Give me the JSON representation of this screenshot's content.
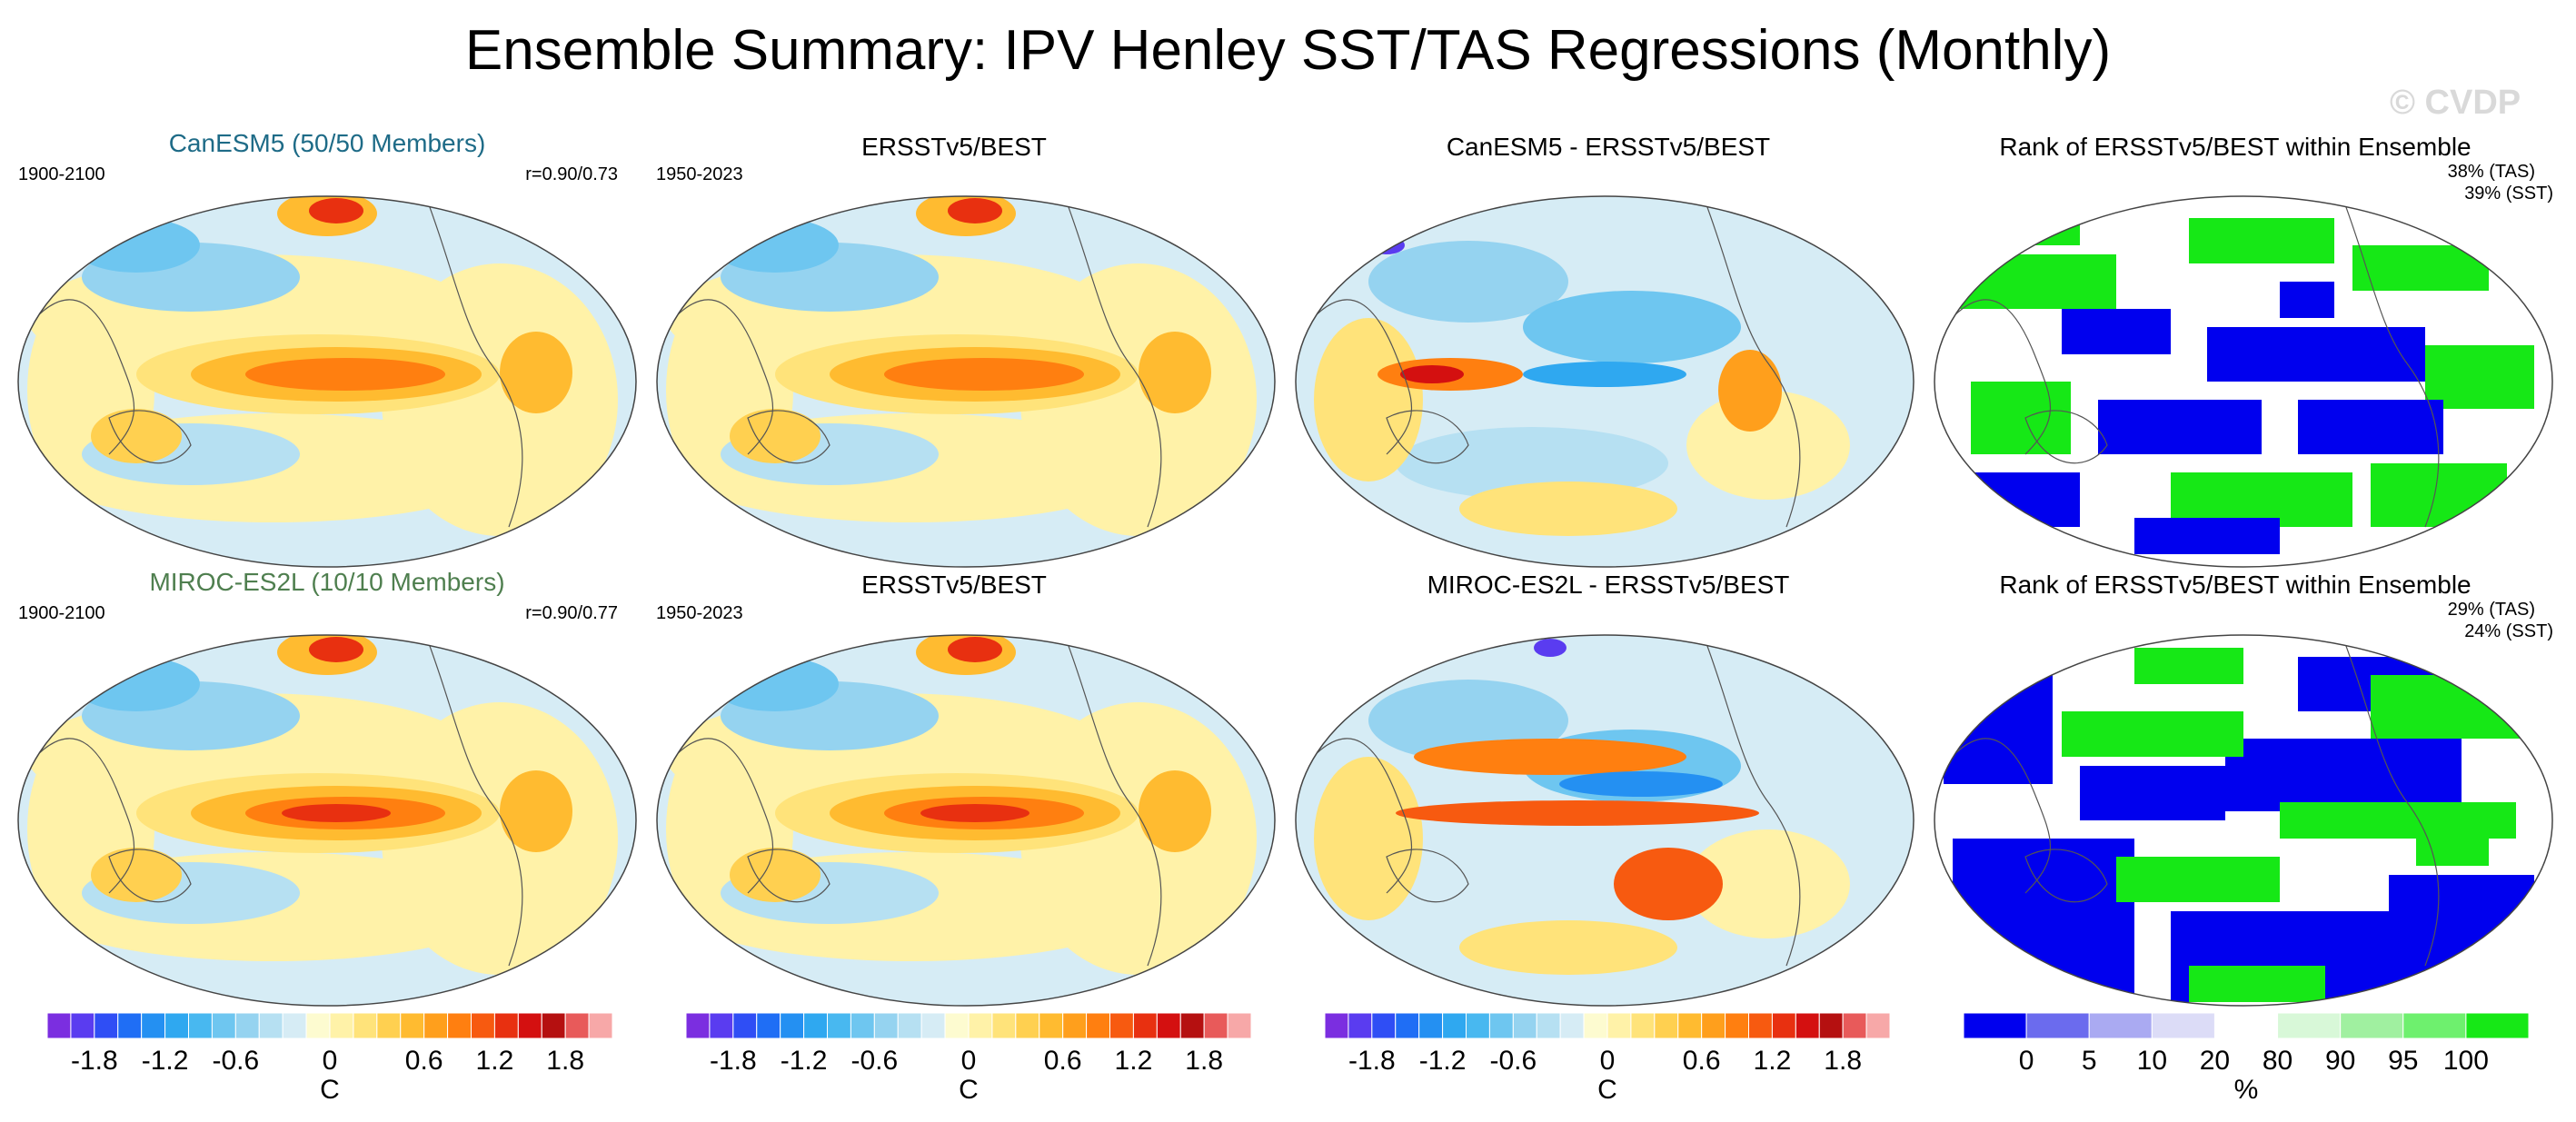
{
  "title": "Ensemble Summary: IPV Henley SST/TAS Regressions (Monthly)",
  "watermark": "© CVDP",
  "rows": [
    {
      "model": {
        "title": "CanESM5 (50/50 Members)",
        "color": "#1e6b87",
        "period": "1900-2100",
        "corr": "r=0.90/0.73",
        "pattern": "el_nino"
      },
      "obs": {
        "title": "ERSSTv5/BEST",
        "period": "1950-2023",
        "pattern": "el_nino"
      },
      "diff": {
        "title": "CanESM5 - ERSSTv5/BEST",
        "pattern": "diff"
      },
      "rank": {
        "title": "Rank of ERSSTv5/BEST within Ensemble",
        "tas": "38% (TAS)",
        "sst": "39% (SST)",
        "pattern": "rank_mixed"
      }
    },
    {
      "model": {
        "title": "MIROC-ES2L (10/10 Members)",
        "color": "#4f7f4f",
        "period": "1900-2100",
        "corr": "r=0.90/0.77",
        "pattern": "el_nino"
      },
      "obs": {
        "title": "ERSSTv5/BEST",
        "period": "1950-2023",
        "pattern": "el_nino"
      },
      "diff": {
        "title": "MIROC-ES2L - ERSSTv5/BEST",
        "pattern": "diff"
      },
      "rank": {
        "title": "Rank of ERSSTv5/BEST within Ensemble",
        "tas": "29% (TAS)",
        "sst": "24% (SST)",
        "pattern": "rank_blue"
      }
    }
  ],
  "chart_data": [
    {
      "type": "heatmap",
      "title": "Regression colorbar",
      "unit_label": "C",
      "levels": [
        -2.0,
        -1.8,
        -1.6,
        -1.4,
        -1.2,
        -1.0,
        -0.8,
        -0.6,
        -0.4,
        -0.2,
        -0.1,
        0,
        0.1,
        0.2,
        0.4,
        0.6,
        0.8,
        1.0,
        1.2,
        1.4,
        1.6,
        1.8,
        2.0
      ],
      "colors": [
        "#7b2ee0",
        "#5a3cf0",
        "#2f4ef5",
        "#1f6ef5",
        "#2490f2",
        "#2fa8f0",
        "#48b8f0",
        "#6ec6f0",
        "#95d3f0",
        "#b6e0f2",
        "#d6ecf5",
        "#fdfbd0",
        "#fff2a8",
        "#ffe37a",
        "#ffd050",
        "#ffbb30",
        "#ff9f1c",
        "#ff7f10",
        "#f75a10",
        "#e83010",
        "#d41010",
        "#b51010",
        "#e85a5a",
        "#f7a8a8"
      ],
      "tick_labels": [
        "-1.8",
        "-1.2",
        "-0.6",
        "0",
        "0.6",
        "1.2",
        "1.8"
      ],
      "tick_values": [
        -1.8,
        -1.2,
        -0.6,
        0,
        0.6,
        1.2,
        1.8
      ]
    },
    {
      "type": "heatmap",
      "title": "Rank colorbar",
      "unit_label": "%",
      "levels": [
        0,
        5,
        10,
        20,
        80,
        90,
        95,
        100
      ],
      "colors": [
        "#0000ee",
        "#6b6bee",
        "#aaaaf2",
        "#dcdcf7",
        "#ffffff",
        "#d8f8d8",
        "#a0f0a0",
        "#6ef06e",
        "#16e816"
      ],
      "tick_labels": [
        "0",
        "5",
        "10",
        "20",
        "80",
        "90",
        "95",
        "100"
      ],
      "tick_values": [
        0,
        5,
        10,
        20,
        80,
        90,
        95,
        100
      ]
    }
  ]
}
